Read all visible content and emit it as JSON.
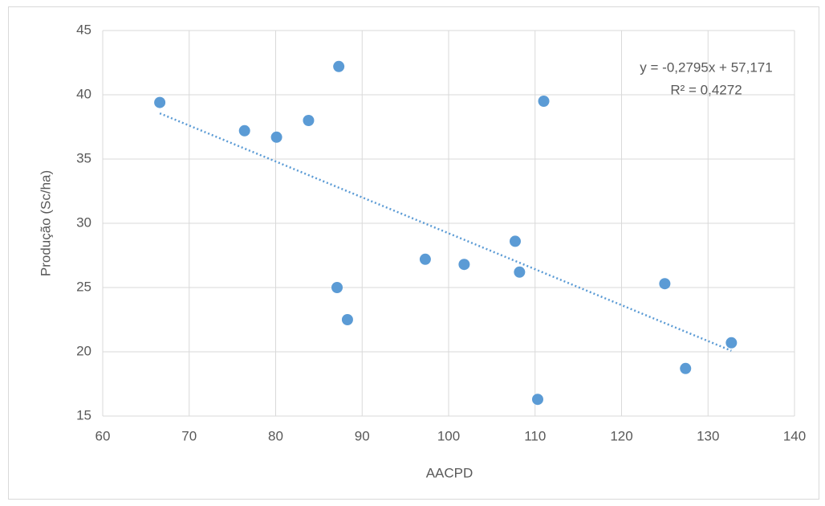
{
  "chart_data": {
    "type": "scatter",
    "x_label": "AACPD",
    "y_label": "Produção (Sc/ha)",
    "series": [
      {
        "color": "#5b9bd5",
        "x": [
          66.6,
          76.4,
          80.1,
          83.8,
          87.3,
          87.1,
          88.3,
          97.3,
          101.8,
          107.7,
          108.2,
          111.0,
          110.3,
          125.0,
          127.4,
          132.7
        ],
        "values": [
          39.4,
          37.2,
          36.7,
          38.0,
          42.2,
          25.0,
          22.5,
          27.2,
          26.8,
          28.6,
          26.2,
          39.5,
          16.3,
          25.3,
          18.7,
          20.7
        ]
      }
    ],
    "trendline": {
      "slope": -0.2795,
      "intercept": 57.171,
      "equation_label": "y = -0,2795x + 57,171",
      "r2_label": "R² = 0,4272"
    },
    "xlim": [
      60,
      140
    ],
    "xticks": [
      60,
      70,
      80,
      90,
      100,
      110,
      120,
      130,
      140
    ],
    "ylim": [
      15,
      45
    ],
    "yticks": [
      15,
      20,
      25,
      30,
      35,
      40,
      45
    ],
    "grid": true
  }
}
